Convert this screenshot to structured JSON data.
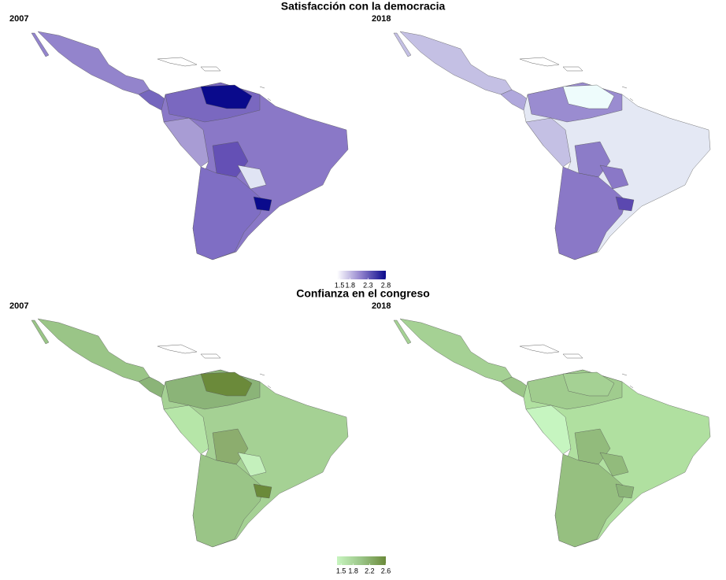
{
  "maps": [
    {
      "title": "Satisfacción con la democracia",
      "panels": [
        "2007",
        "2018"
      ],
      "legend": {
        "range": [
          1.43,
          2.8
        ],
        "ticks": [
          1.5,
          1.8,
          2.3,
          2.8
        ]
      }
    },
    {
      "title": "Confianza en el congreso",
      "panels": [
        "2007",
        "2018"
      ],
      "legend": {
        "range": [
          1.4,
          2.6
        ],
        "ticks": [
          1.5,
          1.8,
          2.2,
          2.6
        ]
      }
    }
  ]
}
